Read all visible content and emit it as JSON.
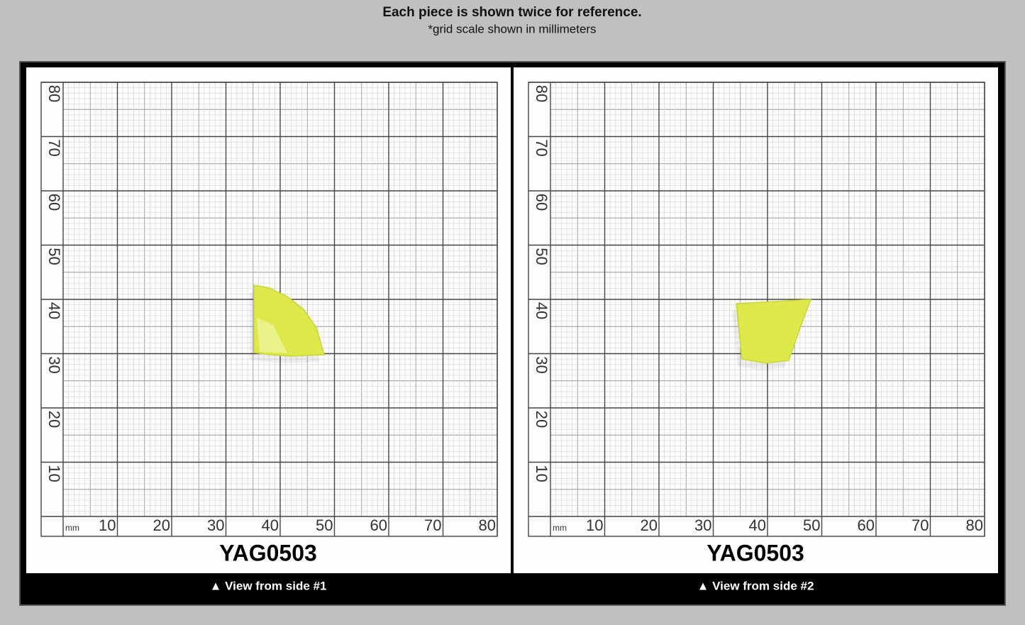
{
  "header": {
    "title": "Each piece is shown twice for reference.",
    "subtitle": "*grid scale shown in millimeters"
  },
  "grid": {
    "unit": "mm",
    "x_labels": [
      "10",
      "20",
      "30",
      "40",
      "50",
      "60",
      "70",
      "80"
    ],
    "y_labels": [
      "80",
      "70",
      "60",
      "50",
      "40",
      "30",
      "20",
      "10"
    ]
  },
  "panels": [
    {
      "label": "YAG0503",
      "caption": "▲ View from side #1"
    },
    {
      "label": "YAG0503",
      "caption": "▲ View from side #2"
    }
  ]
}
